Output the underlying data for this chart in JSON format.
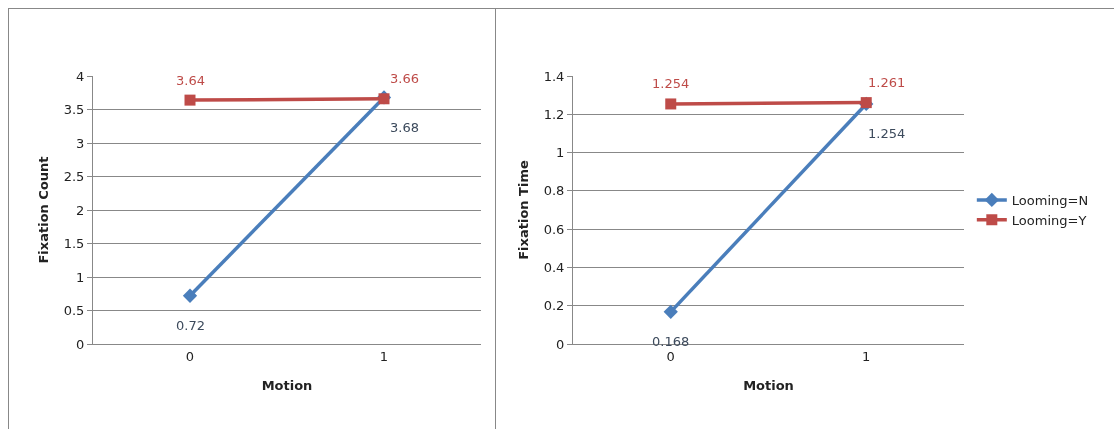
{
  "chart_data": [
    {
      "type": "line",
      "xlabel": "Motion",
      "ylabel": "Fixation Count",
      "categories": [
        "0",
        "1"
      ],
      "ylim": [
        0,
        4
      ],
      "yticks": [
        0,
        0.5,
        1,
        1.5,
        2,
        2.5,
        3,
        3.5,
        4
      ],
      "grid": "y",
      "legend": false,
      "data_labels": true,
      "series": [
        {
          "color": "#4a7ebb",
          "marker": "diamond",
          "values": [
            0.72,
            3.68
          ]
        },
        {
          "color": "#be4b48",
          "marker": "square",
          "values": [
            3.64,
            3.66
          ]
        }
      ]
    },
    {
      "type": "line",
      "xlabel": "Motion",
      "ylabel": "Fixation Time",
      "categories": [
        "0",
        "1"
      ],
      "ylim": [
        0,
        1.4
      ],
      "yticks": [
        0,
        0.2,
        0.4,
        0.6,
        0.8,
        1,
        1.2,
        1.4
      ],
      "grid": "y",
      "legend": "right",
      "data_labels": true,
      "series": [
        {
          "name": "Looming=N",
          "color": "#4a7ebb",
          "marker": "diamond",
          "values": [
            0.168,
            1.254
          ]
        },
        {
          "name": "Looming=Y",
          "color": "#be4b48",
          "marker": "square",
          "values": [
            1.254,
            1.261
          ]
        }
      ]
    }
  ]
}
